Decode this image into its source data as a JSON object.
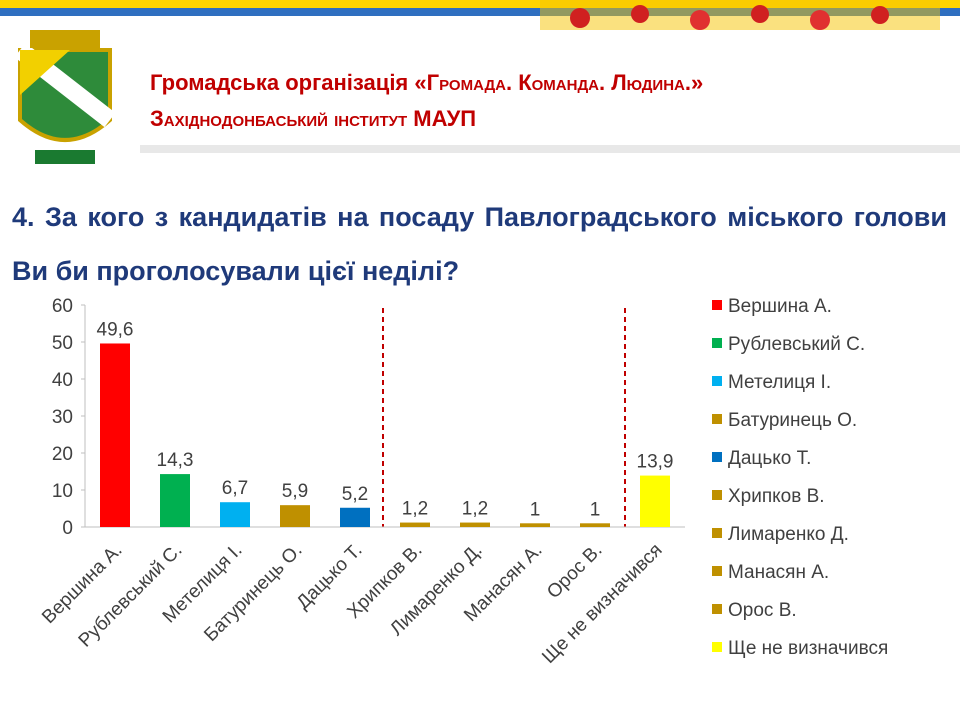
{
  "header": {
    "line1_prefix": "Громадська організація",
    "line1_name": "«Громада. Команда. Людина.»",
    "line2": "Західнодонбаський інститут МАУП"
  },
  "question": "4. За кого з кандидатів на посаду Павлоградського міського голови Ви би проголосували цієї неділі?",
  "chart_data": {
    "type": "bar",
    "categories": [
      "Вершина А.",
      "Рублевський С.",
      "Метелиця І.",
      "Батуринець О.",
      "Дацько Т.",
      "Хрипков В.",
      "Лимаренко Д.",
      "Манасян А.",
      "Орос В.",
      "Ще не визначився"
    ],
    "values": [
      49.6,
      14.3,
      6.7,
      5.9,
      5.2,
      1.2,
      1.2,
      1,
      1,
      13.9
    ],
    "value_labels": [
      "49,6",
      "14,3",
      "6,7",
      "5,9",
      "5,2",
      "1,2",
      "1,2",
      "1",
      "1",
      "13,9"
    ],
    "colors": [
      "#ff0000",
      "#00b050",
      "#00b0f0",
      "#bf9000",
      "#0070c0",
      "#bf9000",
      "#bf9000",
      "#bf9000",
      "#bf9000",
      "#ffff00"
    ],
    "ylim": [
      0,
      60
    ],
    "yticks": [
      0,
      10,
      20,
      30,
      40,
      50,
      60
    ],
    "grid": false,
    "legend": "right"
  }
}
